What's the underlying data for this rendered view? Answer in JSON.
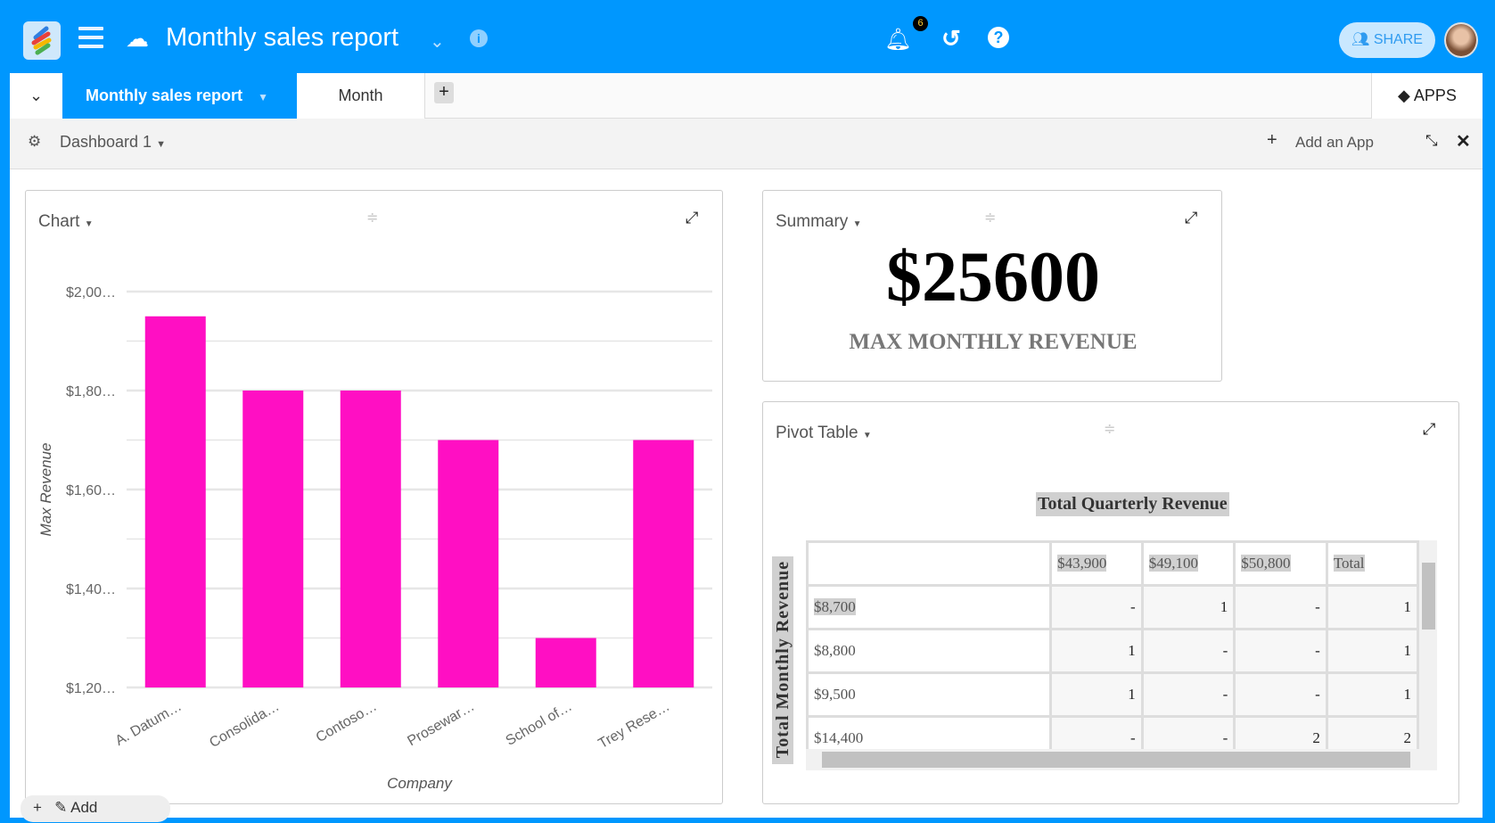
{
  "topbar": {
    "title": "Monthly sales report",
    "notification_count": "6",
    "share_label": "SHARE"
  },
  "tabs": {
    "items": [
      {
        "label": "Monthly sales report",
        "active": true
      },
      {
        "label": "Month",
        "active": false
      }
    ],
    "apps_label": "APPS"
  },
  "dashboard": {
    "name": "Dashboard 1",
    "add_app_label": "Add an App"
  },
  "chart_panel": {
    "title": "Chart",
    "add_label": "Add"
  },
  "chart_data": {
    "type": "bar",
    "categories": [
      "A. Datum…",
      "Consolida…",
      "Contoso…",
      "Prosewar…",
      "School of…",
      "Trey Rese…"
    ],
    "values": [
      19500,
      18000,
      18000,
      17000,
      13000,
      17000
    ],
    "ytick_labels": [
      "$2,00…",
      "$1,80…",
      "$1,60…",
      "$1,40…",
      "$1,20…"
    ],
    "ytick_values": [
      20000,
      18000,
      16000,
      14000,
      12000
    ],
    "ylim": [
      12000,
      20000
    ],
    "xlabel": "Company",
    "ylabel": "Max Revenue",
    "grid": true,
    "color": "#ff0fc3"
  },
  "summary": {
    "title": "Summary",
    "value": "$25600",
    "label": "MAX MONTHLY REVENUE"
  },
  "pivot": {
    "title": "Pivot Table",
    "col_title": "Total Quarterly Revenue",
    "row_title": "Total Monthly Revenue",
    "columns": [
      "$43,900",
      "$49,100",
      "$50,800",
      "Total"
    ],
    "rows": [
      {
        "label": "$8,700",
        "cells": [
          "-",
          "1",
          "-",
          "1"
        ]
      },
      {
        "label": "$8,800",
        "cells": [
          "1",
          "-",
          "-",
          "1"
        ]
      },
      {
        "label": "$9,500",
        "cells": [
          "1",
          "-",
          "-",
          "1"
        ]
      },
      {
        "label": "$14,400",
        "cells": [
          "-",
          "-",
          "2",
          "2"
        ]
      }
    ]
  }
}
